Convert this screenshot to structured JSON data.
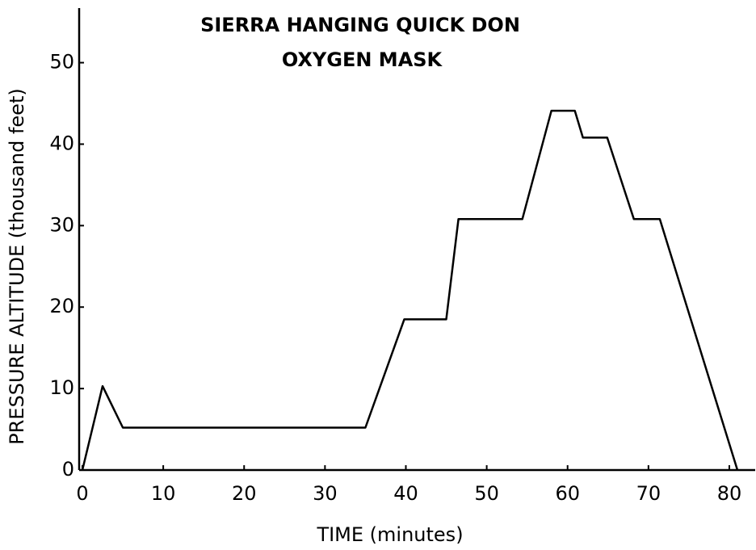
{
  "chart_data": {
    "type": "line",
    "title": "SIERRA HANGING QUICK DON",
    "subtitle": "OXYGEN MASK",
    "xlabel": "TIME (minutes)",
    "ylabel": "PRESSURE ALTITUDE (thousand feet)",
    "x": [
      0,
      2.5,
      5,
      35,
      39.8,
      45,
      46.5,
      54.4,
      58,
      60.9,
      61.9,
      64.9,
      68.2,
      71.4,
      81
    ],
    "values": [
      0,
      10.3,
      5.2,
      5.2,
      18.5,
      18.5,
      30.8,
      30.8,
      44.1,
      44.1,
      40.8,
      40.8,
      30.8,
      30.8,
      0
    ],
    "color": "#000000",
    "xlim": [
      0,
      83.2
    ],
    "xticks": [
      0,
      10,
      20,
      30,
      40,
      50,
      60,
      70,
      80
    ],
    "ylim": [
      0,
      56.7
    ],
    "yticks": [
      0,
      10,
      20,
      30,
      40,
      50
    ],
    "grid": false
  }
}
